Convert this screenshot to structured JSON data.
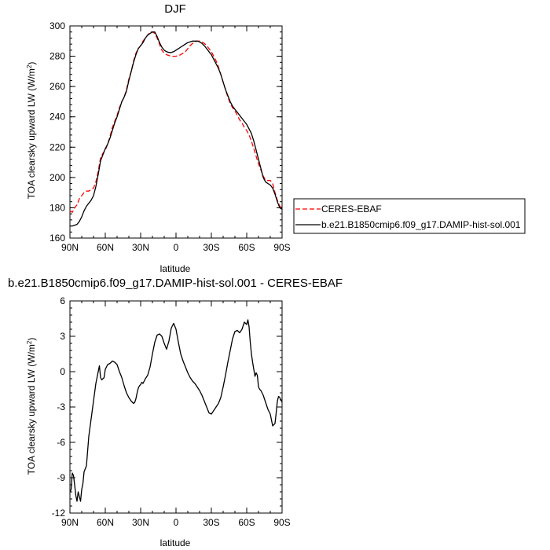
{
  "chart_data": [
    {
      "type": "line",
      "title": "DJF",
      "xlabel": "latitude",
      "ylabel": "TOA clearsky upward LW (W/m",
      "ylabel_sup": "2",
      "ylabel_close": ")",
      "xlim": [
        90,
        -90
      ],
      "ylim": [
        160,
        300
      ],
      "x_ticks": [
        {
          "value": 90,
          "label": "90N"
        },
        {
          "value": 60,
          "label": "60N"
        },
        {
          "value": 30,
          "label": "30N"
        },
        {
          "value": 0,
          "label": "0"
        },
        {
          "value": -30,
          "label": "30S"
        },
        {
          "value": -60,
          "label": "60S"
        },
        {
          "value": -90,
          "label": "90S"
        }
      ],
      "y_ticks": [
        {
          "value": 160,
          "label": "160"
        },
        {
          "value": 180,
          "label": "180"
        },
        {
          "value": 200,
          "label": "200"
        },
        {
          "value": 220,
          "label": "220"
        },
        {
          "value": 240,
          "label": "240"
        },
        {
          "value": 260,
          "label": "260"
        },
        {
          "value": 280,
          "label": "280"
        },
        {
          "value": 300,
          "label": "300"
        }
      ],
      "legend_position": "right",
      "series": [
        {
          "name": "CERES-EBAF",
          "color": "#ff0000",
          "dash": true,
          "x": [
            90,
            88,
            86,
            84,
            82,
            80,
            78,
            76,
            74,
            72,
            70,
            68,
            66,
            64,
            62,
            60,
            58,
            56,
            54,
            52,
            50,
            48,
            46,
            44,
            42,
            40,
            38,
            36,
            34,
            32,
            30,
            28,
            26,
            24,
            22,
            20,
            18,
            16,
            14,
            12,
            10,
            8,
            6,
            4,
            2,
            0,
            -2,
            -4,
            -6,
            -8,
            -10,
            -12,
            -14,
            -16,
            -18,
            -20,
            -22,
            -24,
            -26,
            -28,
            -30,
            -32,
            -34,
            -36,
            -38,
            -40,
            -42,
            -44,
            -46,
            -48,
            -50,
            -52,
            -54,
            -56,
            -58,
            -60,
            -62,
            -64,
            -66,
            -68,
            -70,
            -72,
            -74,
            -76,
            -78,
            -80,
            -82,
            -84,
            -86,
            -88,
            -90
          ],
          "y": [
            178,
            177,
            180,
            182,
            186,
            188,
            190,
            191,
            191,
            192,
            193,
            197,
            204,
            213,
            216,
            218,
            222,
            227,
            233,
            237,
            241,
            246,
            250,
            253,
            258,
            265,
            270,
            277,
            282,
            285,
            287,
            290,
            292,
            294,
            296,
            296,
            295,
            292,
            288,
            284,
            282,
            281,
            280.5,
            280,
            280,
            280,
            280.5,
            281,
            282,
            283,
            285,
            287,
            288.5,
            289.5,
            290,
            290,
            289.5,
            288.5,
            287,
            285,
            283,
            280,
            277,
            273,
            268,
            263,
            258,
            253,
            249,
            246,
            244,
            241,
            238,
            236,
            233,
            231,
            228,
            224,
            219,
            214,
            209,
            205,
            201,
            198,
            198,
            198,
            196,
            190,
            185,
            181,
            180
          ]
        },
        {
          "name": "b.e21.B1850cmip6.f09_g17.DAMIP-hist-sol.001",
          "color": "#000000",
          "dash": false,
          "x": [
            90,
            88,
            86,
            84,
            82,
            80,
            78,
            76,
            74,
            72,
            70,
            68,
            66,
            64,
            62,
            60,
            58,
            56,
            54,
            52,
            50,
            48,
            46,
            44,
            42,
            40,
            38,
            36,
            34,
            32,
            30,
            28,
            26,
            24,
            22,
            20,
            18,
            16,
            14,
            12,
            10,
            8,
            6,
            4,
            2,
            0,
            -2,
            -4,
            -6,
            -8,
            -10,
            -12,
            -14,
            -16,
            -18,
            -20,
            -22,
            -24,
            -26,
            -28,
            -30,
            -32,
            -34,
            -36,
            -38,
            -40,
            -42,
            -44,
            -46,
            -48,
            -50,
            -52,
            -54,
            -56,
            -58,
            -60,
            -62,
            -64,
            -66,
            -68,
            -70,
            -72,
            -74,
            -76,
            -78,
            -80,
            -82,
            -84,
            -86,
            -88,
            -90
          ],
          "y": [
            168,
            168,
            168.5,
            169,
            171,
            174,
            178,
            181,
            183,
            185,
            188,
            194,
            202,
            211,
            215,
            219,
            222,
            226,
            231,
            236,
            240,
            245,
            250,
            253,
            257,
            264,
            270,
            276,
            281,
            285,
            287,
            289,
            292,
            294,
            295,
            296,
            296,
            293,
            289,
            286,
            284,
            283,
            282.5,
            282.5,
            283,
            284,
            285,
            286,
            287,
            288,
            289,
            289.5,
            290,
            290,
            290,
            289.5,
            288.5,
            287,
            285,
            283,
            281,
            278,
            275,
            272,
            268,
            263,
            258,
            254,
            250,
            247,
            245,
            243,
            241,
            239,
            237,
            235,
            232,
            229,
            224,
            218,
            212,
            206,
            200,
            197,
            196,
            195,
            193,
            189,
            184,
            180,
            179
          ]
        }
      ]
    },
    {
      "type": "line",
      "title": "b.e21.B1850cmip6.f09_g17.DAMIP-hist-sol.001 - CERES-EBAF",
      "xlabel": "latitude",
      "ylabel": "TOA clearsky upward LW (W/m",
      "ylabel_sup": "2",
      "ylabel_close": ")",
      "xlim": [
        90,
        -90
      ],
      "ylim": [
        -12,
        6
      ],
      "x_ticks": [
        {
          "value": 90,
          "label": "90N"
        },
        {
          "value": 60,
          "label": "60N"
        },
        {
          "value": 30,
          "label": "30N"
        },
        {
          "value": 0,
          "label": "0"
        },
        {
          "value": -30,
          "label": "30S"
        },
        {
          "value": -60,
          "label": "60S"
        },
        {
          "value": -90,
          "label": "90S"
        }
      ],
      "y_ticks": [
        {
          "value": 6,
          "label": "6"
        },
        {
          "value": 3,
          "label": "3"
        },
        {
          "value": 0,
          "label": "0"
        },
        {
          "value": -3,
          "label": "-3"
        },
        {
          "value": -6,
          "label": "-6"
        },
        {
          "value": -9,
          "label": "-9"
        },
        {
          "value": -12,
          "label": "-12"
        }
      ],
      "series": [
        {
          "name": "",
          "color": "#000000",
          "dash": false,
          "x": [
            90,
            89,
            88,
            87,
            86,
            85,
            84,
            83,
            82,
            81,
            80,
            79,
            78,
            76,
            74,
            72,
            70,
            68,
            66,
            65,
            64,
            63,
            62,
            61,
            60,
            59,
            58,
            56,
            54,
            52,
            50,
            48,
            46,
            44,
            42,
            40,
            38,
            36,
            35,
            34,
            33,
            32,
            31,
            30,
            29,
            28,
            27,
            26,
            24,
            22,
            20,
            18,
            16,
            14,
            12,
            10,
            8,
            6,
            4,
            2,
            0,
            -2,
            -4,
            -6,
            -8,
            -10,
            -12,
            -14,
            -16,
            -18,
            -20,
            -22,
            -24,
            -26,
            -28,
            -30,
            -32,
            -34,
            -36,
            -38,
            -40,
            -42,
            -44,
            -46,
            -48,
            -50,
            -52,
            -54,
            -56,
            -58,
            -60,
            -61,
            -62,
            -63,
            -64,
            -65,
            -66,
            -67,
            -68,
            -69,
            -70,
            -71,
            -72,
            -74,
            -76,
            -78,
            -80,
            -82,
            -84,
            -85,
            -86,
            -87,
            -88,
            -89,
            -90
          ],
          "y": [
            -10.2,
            -10,
            -8.6,
            -8.8,
            -9.6,
            -10.5,
            -11,
            -10.2,
            -10.6,
            -11,
            -10,
            -9.5,
            -8.5,
            -8,
            -5.5,
            -4,
            -2.5,
            -1,
            0,
            0.5,
            -0.5,
            -0.7,
            -0.6,
            -0.5,
            0.2,
            0.4,
            0.6,
            0.7,
            0.9,
            0.8,
            0.6,
            0,
            -0.5,
            -1.2,
            -1.8,
            -2.2,
            -2.5,
            -2.7,
            -2.6,
            -2.3,
            -1.8,
            -1.4,
            -1.2,
            -1.1,
            -0.9,
            -1.0,
            -0.8,
            -0.6,
            -0.3,
            0.4,
            1.5,
            2.5,
            3.1,
            3.2,
            3.0,
            2.4,
            1.9,
            2.6,
            3.7,
            4.1,
            3.6,
            2.5,
            1.5,
            0.9,
            0.4,
            -0.1,
            -0.5,
            -0.8,
            -1.0,
            -1.3,
            -1.6,
            -2.0,
            -2.5,
            -3.0,
            -3.5,
            -3.6,
            -3.3,
            -3.0,
            -2.7,
            -2.2,
            -1.3,
            -0.3,
            0.8,
            1.8,
            2.8,
            3.4,
            3.5,
            3.3,
            3.6,
            4.2,
            4.0,
            4.4,
            3.8,
            2.5,
            1.5,
            0.8,
            0.2,
            -0.4,
            -0.1,
            -0.3,
            -1.3,
            -1.5,
            -1.6,
            -2.0,
            -2.6,
            -3.2,
            -3.6,
            -4.6,
            -4.4,
            -3.5,
            -2.5,
            -2.1,
            -2.2,
            -2.4,
            -2.6
          ]
        }
      ]
    }
  ]
}
